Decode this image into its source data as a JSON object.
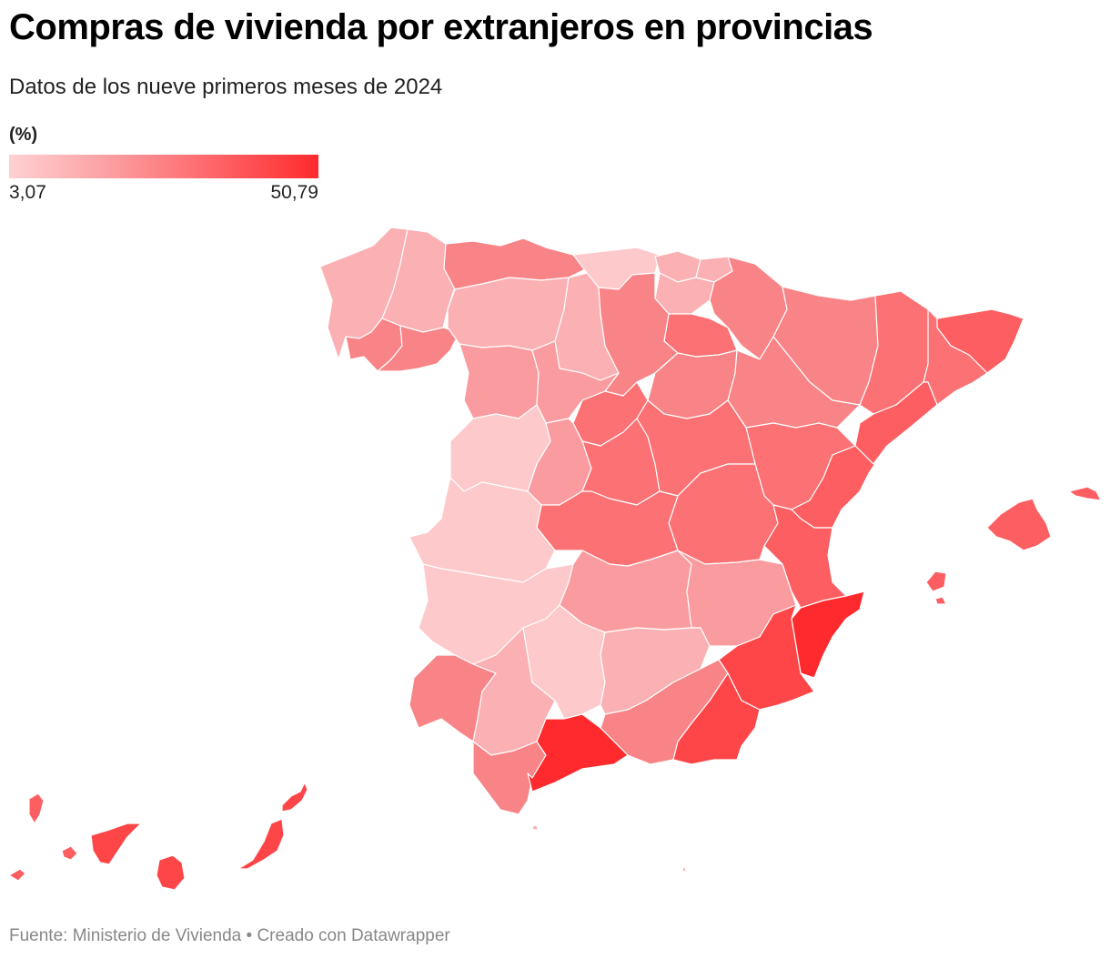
{
  "title": "Compras de vivienda por extranjeros en provincias",
  "subtitle": "Datos de los nueve primeros meses de 2024",
  "legend": {
    "title": "(%)",
    "min": "3,07",
    "max": "50,79",
    "color_min": "#ffd1d3",
    "color_max": "#ff2a2d"
  },
  "footer": "Fuente: Ministerio de Vivienda • Creado con Datawrapper",
  "palette": {
    "very_light": "#fdc9cb",
    "light": "#fbb0b3",
    "light_mid": "#fa9c9f",
    "mid": "#f98487",
    "mid_dark": "#fb7174",
    "dark": "#fd5e61",
    "darker": "#fe4649",
    "darkest": "#ff2a2d"
  }
}
